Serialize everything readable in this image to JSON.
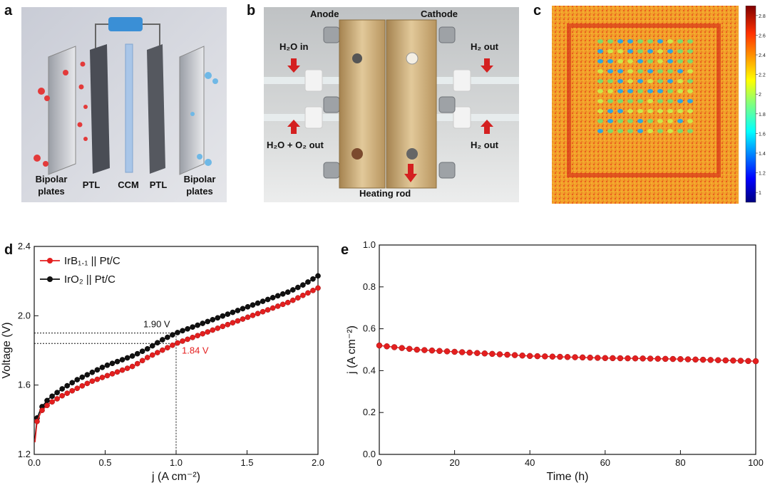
{
  "panels": {
    "a": {
      "letter": "a",
      "labels": {
        "bipolar_left_1": "Bipolar",
        "bipolar_left_2": "plates",
        "ptl_left": "PTL",
        "ccm": "CCM",
        "ptl_right": "PTL",
        "bipolar_right_1": "Bipolar",
        "bipolar_right_2": "plates"
      }
    },
    "b": {
      "letter": "b",
      "labels": {
        "anode": "Anode",
        "cathode": "Cathode",
        "h2o_in": "H₂O in",
        "h2_out_top": "H₂ out",
        "h2o_o2_out": "H₂O + O₂ out",
        "h2_out_bottom": "H₂ out",
        "heating_rod": "Heating rod"
      }
    },
    "c": {
      "letter": "c",
      "colorbar_ticks": [
        "2.8",
        "2.6",
        "2.4",
        "2.2",
        "2",
        "1.8",
        "1.6",
        "1.4",
        "1.2",
        "1"
      ],
      "colorbar_range": [
        0.9,
        2.9
      ]
    }
  },
  "chart_data": [
    {
      "type": "line",
      "panel": "d",
      "letter": "d",
      "xlabel": "j (A cm⁻²)",
      "ylabel": "Voltage (V)",
      "xlim": [
        0,
        2.0
      ],
      "ylim": [
        1.2,
        2.4
      ],
      "xticks": [
        "0.0",
        "0.5",
        "1.0",
        "1.5",
        "2.0"
      ],
      "yticks": [
        "1.2",
        "1.6",
        "2.0",
        "2.4"
      ],
      "legend_position": "top-left",
      "series": [
        {
          "name": "IrB₁.₁ || Pt/C",
          "color": "#e41f1f",
          "x": [
            0.005,
            0.02,
            0.05,
            0.1,
            0.2,
            0.3,
            0.4,
            0.5,
            0.6,
            0.7,
            0.8,
            0.9,
            1.0,
            1.1,
            1.2,
            1.3,
            1.4,
            1.5,
            1.6,
            1.7,
            1.8,
            1.9,
            2.0
          ],
          "y": [
            1.27,
            1.39,
            1.45,
            1.49,
            1.54,
            1.58,
            1.62,
            1.65,
            1.68,
            1.71,
            1.76,
            1.8,
            1.84,
            1.87,
            1.9,
            1.93,
            1.96,
            1.99,
            2.02,
            2.05,
            2.08,
            2.12,
            2.16
          ]
        },
        {
          "name": "IrO₂ ||  Pt/C",
          "color": "#111111",
          "x": [
            0.005,
            0.02,
            0.05,
            0.1,
            0.2,
            0.3,
            0.4,
            0.5,
            0.6,
            0.7,
            0.8,
            0.9,
            1.0,
            1.1,
            1.2,
            1.3,
            1.4,
            1.5,
            1.6,
            1.7,
            1.8,
            1.9,
            2.0
          ],
          "y": [
            1.29,
            1.41,
            1.47,
            1.52,
            1.58,
            1.63,
            1.67,
            1.71,
            1.74,
            1.77,
            1.81,
            1.86,
            1.9,
            1.93,
            1.96,
            1.99,
            2.02,
            2.05,
            2.08,
            2.11,
            2.14,
            2.18,
            2.23
          ]
        }
      ],
      "annotations": [
        {
          "text": "1.90 V",
          "x": 1.0,
          "y": 1.9,
          "color": "#111111"
        },
        {
          "text": "1.84 V",
          "x": 1.0,
          "y": 1.84,
          "color": "#e41f1f"
        }
      ]
    },
    {
      "type": "line",
      "panel": "e",
      "letter": "e",
      "xlabel": "Time (h)",
      "ylabel": "j (A cm⁻²)",
      "xlim": [
        0,
        100
      ],
      "ylim": [
        0.0,
        1.0
      ],
      "xticks": [
        "0",
        "20",
        "40",
        "60",
        "80",
        "100"
      ],
      "yticks": [
        "0.0",
        "0.2",
        "0.4",
        "0.6",
        "0.8",
        "1.0"
      ],
      "series": [
        {
          "name": "",
          "color": "#e41f1f",
          "x": [
            0,
            10,
            20,
            30,
            40,
            50,
            60,
            70,
            80,
            90,
            100
          ],
          "y": [
            0.52,
            0.5,
            0.49,
            0.48,
            0.47,
            0.465,
            0.46,
            0.458,
            0.455,
            0.45,
            0.445
          ]
        }
      ]
    }
  ]
}
